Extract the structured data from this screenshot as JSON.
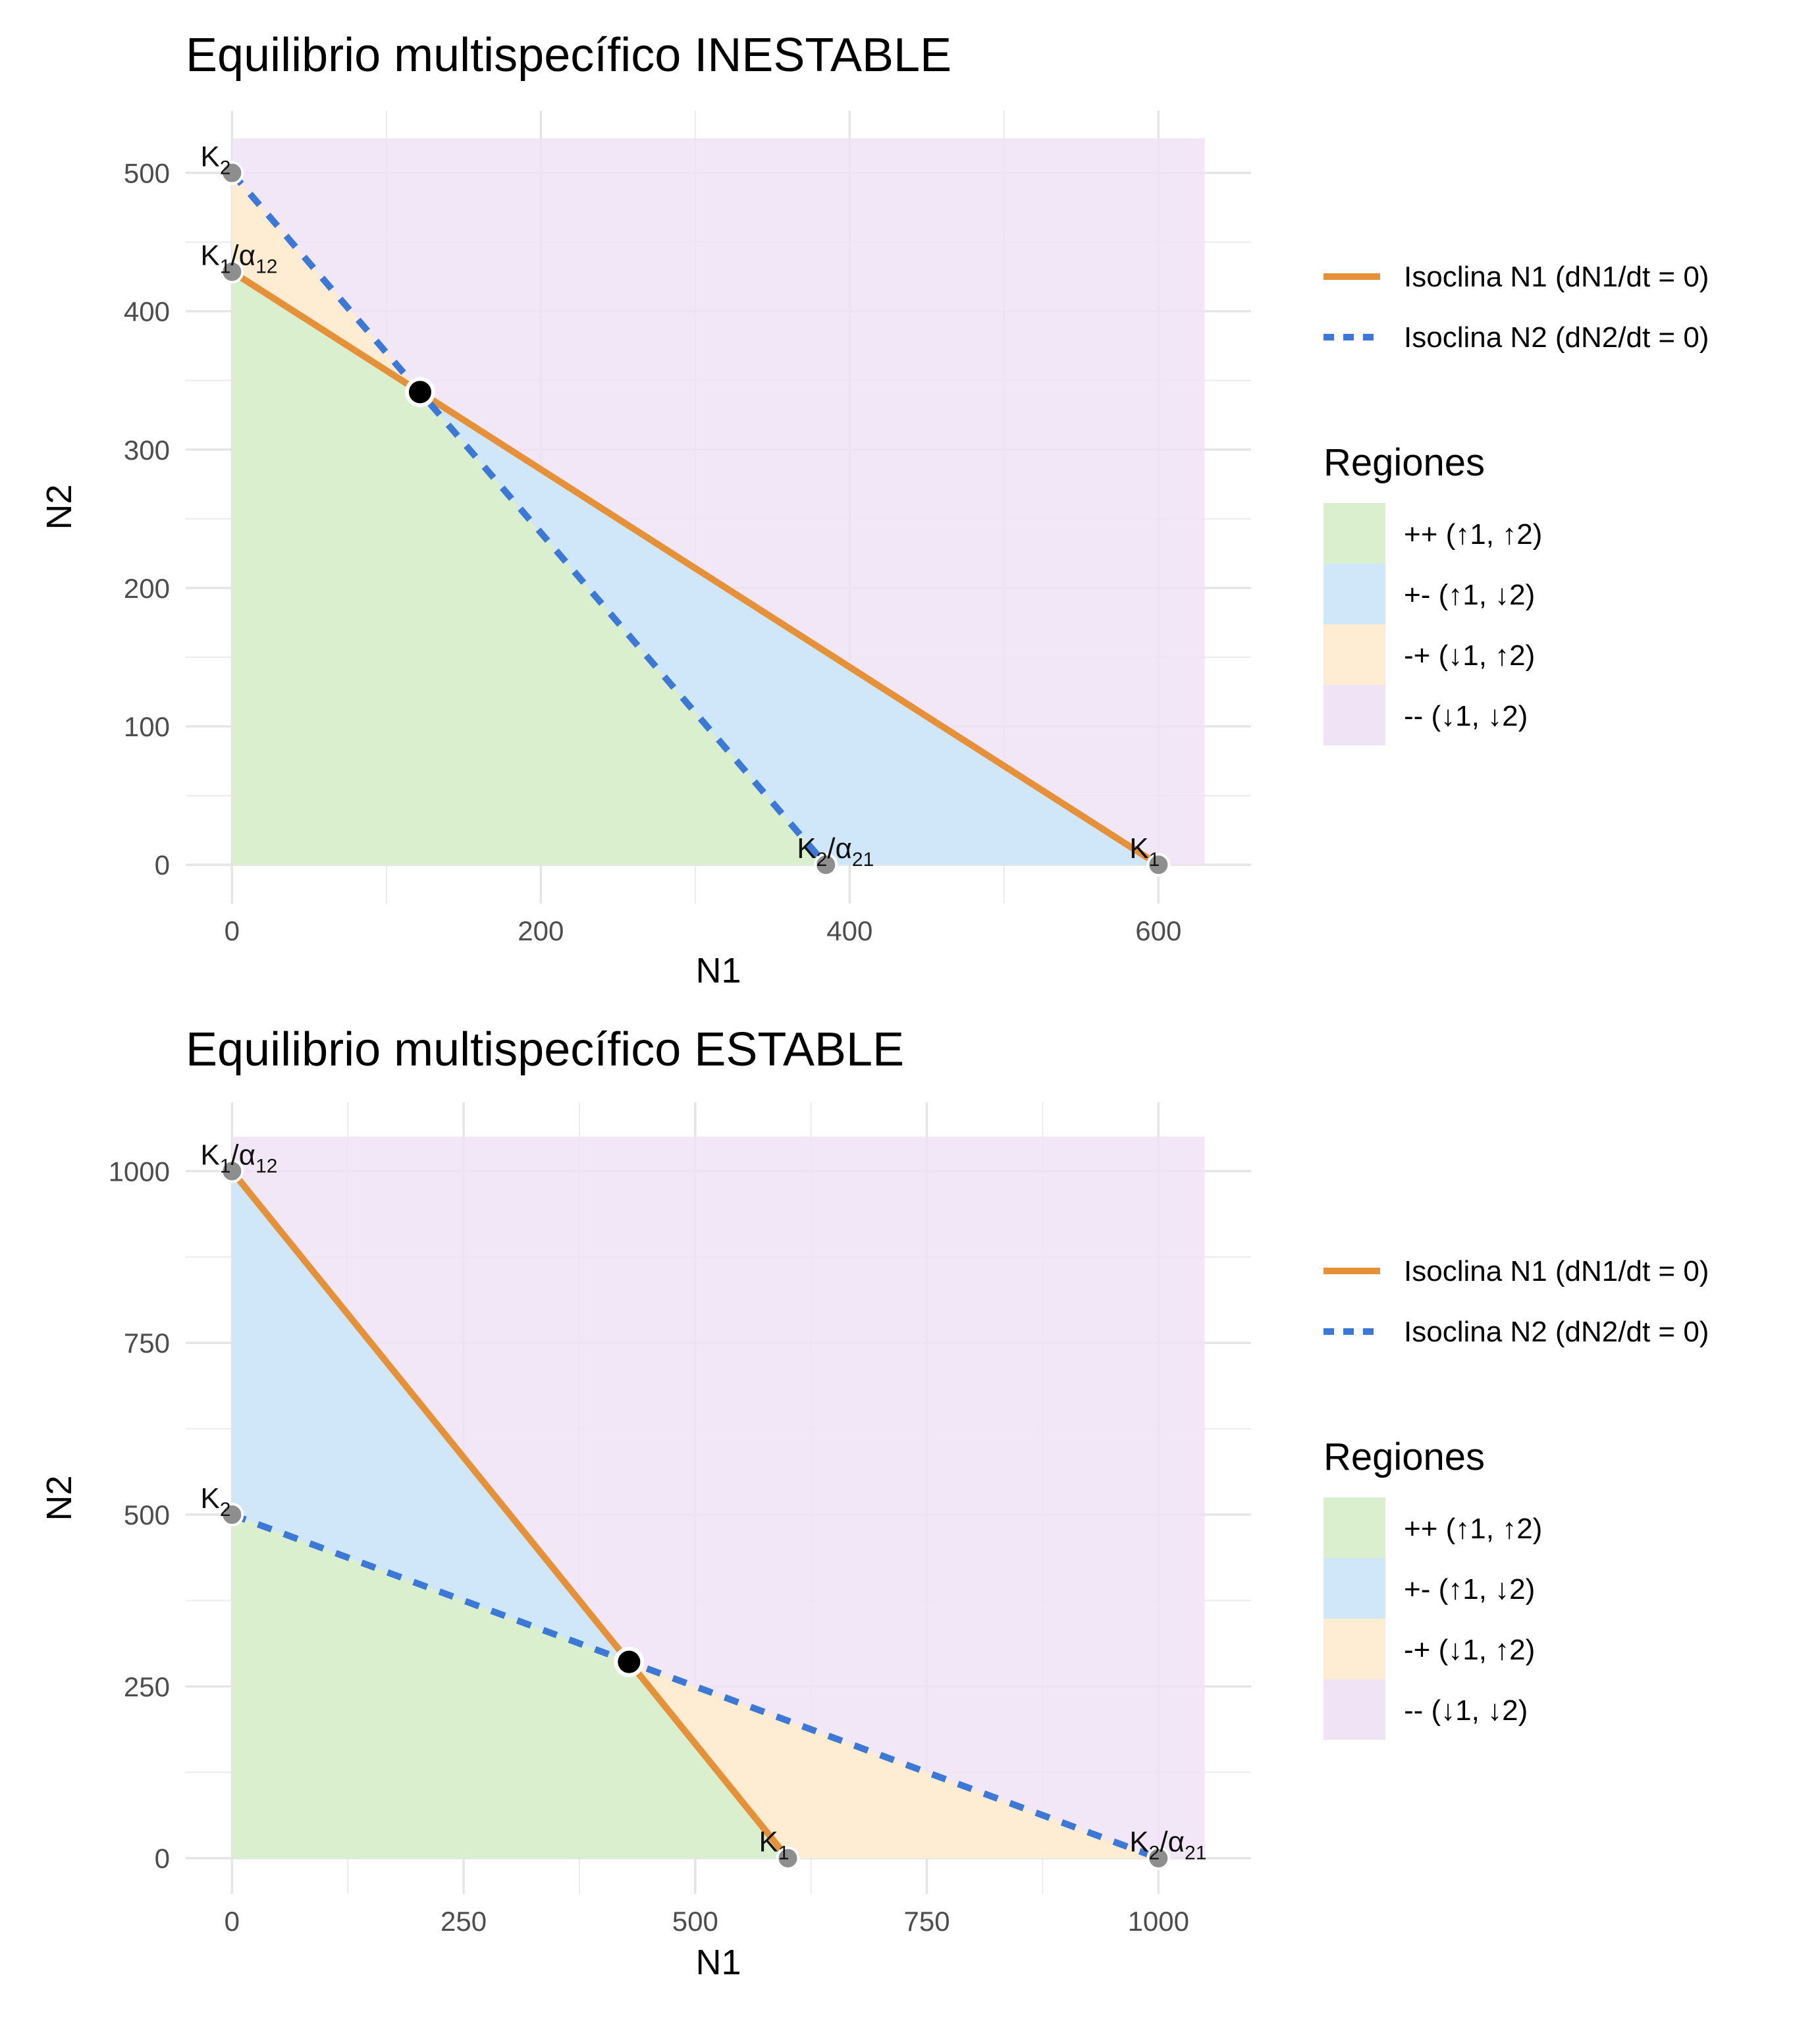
{
  "chart_data": [
    {
      "type": "line",
      "title": "Equilibrio multispecífico INESTABLE",
      "xlabel": "N1",
      "ylabel": "N2",
      "xlim": [
        -30,
        660
      ],
      "ylim": [
        -28,
        545
      ],
      "x_ticks": [
        0,
        200,
        400,
        600
      ],
      "y_ticks": [
        0,
        100,
        200,
        300,
        400,
        500
      ],
      "x_tick_labels": [
        "0",
        "200",
        "400",
        "600"
      ],
      "y_tick_labels": [
        "0",
        "100",
        "200",
        "300",
        "400",
        "500"
      ],
      "region_extent": {
        "x": [
          0,
          630
        ],
        "y": [
          0,
          525
        ]
      },
      "series": [
        {
          "name": "Isoclina N1 (dN1/dt = 0)",
          "style": "solid",
          "color": "#E69138",
          "x": [
            0,
            600
          ],
          "y": [
            428.6,
            0
          ]
        },
        {
          "name": "Isoclina N2 (dN2/dt = 0)",
          "style": "dashed",
          "color": "#3C78D8",
          "x": [
            0,
            384.6
          ],
          "y": [
            500,
            0
          ]
        }
      ],
      "regions": [
        {
          "name": "++ (↑1, ↑2)",
          "color": "#D9EFCD",
          "polygon": [
            [
              0,
              0
            ],
            [
              384.6,
              0
            ],
            [
              121.8,
              341.6
            ],
            [
              0,
              428.6
            ]
          ]
        },
        {
          "name": "+- (↑1, ↓2)",
          "color": "#D0E7FA",
          "polygon": [
            [
              384.6,
              0
            ],
            [
              600,
              0
            ],
            [
              121.8,
              341.6
            ]
          ]
        },
        {
          "name": "-+ (↓1, ↑2)",
          "color": "#FEEDD2",
          "polygon": [
            [
              0,
              428.6
            ],
            [
              121.8,
              341.6
            ],
            [
              0,
              500
            ]
          ]
        }
      ],
      "background_region": {
        "name": "-- (↓1, ↓2)",
        "color": "#EFE3F5"
      },
      "equilibrium": {
        "x": 121.8,
        "y": 341.6
      },
      "points": [
        {
          "base": "K",
          "sub": "2",
          "tail": "",
          "tail_sub": "",
          "x": 0,
          "y": 500
        },
        {
          "base": "K",
          "sub": "1",
          "tail": "/α",
          "tail_sub": "12",
          "x": 0,
          "y": 428.6
        },
        {
          "base": "K",
          "sub": "2",
          "tail": "/α",
          "tail_sub": "21",
          "x": 384.6,
          "y": 0
        },
        {
          "base": "K",
          "sub": "1",
          "tail": "",
          "tail_sub": "",
          "x": 600,
          "y": 0
        }
      ],
      "legend_title": "Regiones",
      "legend_position": "right"
    },
    {
      "type": "line",
      "title": "Equilibrio multispecífico ESTABLE",
      "xlabel": "N1",
      "ylabel": "N2",
      "xlim": [
        -50,
        1100
      ],
      "ylim": [
        -52,
        1100
      ],
      "x_ticks": [
        0,
        250,
        500,
        750,
        1000
      ],
      "y_ticks": [
        0,
        250,
        500,
        750,
        1000
      ],
      "x_tick_labels": [
        "0",
        "250",
        "500",
        "750",
        "1000"
      ],
      "y_tick_labels": [
        "0",
        "250",
        "500",
        "750",
        "1000"
      ],
      "region_extent": {
        "x": [
          0,
          1050
        ],
        "y": [
          0,
          1050
        ]
      },
      "series": [
        {
          "name": "Isoclina N1 (dN1/dt = 0)",
          "style": "solid",
          "color": "#E69138",
          "x": [
            0,
            600
          ],
          "y": [
            1000,
            0
          ]
        },
        {
          "name": "Isoclina N2 (dN2/dt = 0)",
          "style": "dashed",
          "color": "#3C78D8",
          "x": [
            0,
            1000
          ],
          "y": [
            500,
            0
          ]
        }
      ],
      "regions": [
        {
          "name": "++ (↑1, ↑2)",
          "color": "#D9EFCD",
          "polygon": [
            [
              0,
              0
            ],
            [
              600,
              0
            ],
            [
              428.6,
              285.7
            ],
            [
              0,
              500
            ]
          ]
        },
        {
          "name": "+- (↑1, ↓2)",
          "color": "#D0E7FA",
          "polygon": [
            [
              0,
              500
            ],
            [
              428.6,
              285.7
            ],
            [
              0,
              1000
            ]
          ]
        },
        {
          "name": "-+ (↓1, ↑2)",
          "color": "#FEEDD2",
          "polygon": [
            [
              600,
              0
            ],
            [
              1000,
              0
            ],
            [
              428.6,
              285.7
            ]
          ]
        }
      ],
      "background_region": {
        "name": "-- (↓1, ↓2)",
        "color": "#EFE3F5"
      },
      "equilibrium": {
        "x": 428.6,
        "y": 285.7
      },
      "points": [
        {
          "base": "K",
          "sub": "1",
          "tail": "/α",
          "tail_sub": "12",
          "x": 0,
          "y": 1000
        },
        {
          "base": "K",
          "sub": "2",
          "tail": "",
          "tail_sub": "",
          "x": 0,
          "y": 500
        },
        {
          "base": "K",
          "sub": "1",
          "tail": "",
          "tail_sub": "",
          "x": 600,
          "y": 0
        },
        {
          "base": "K",
          "sub": "2",
          "tail": "/α",
          "tail_sub": "21",
          "x": 1000,
          "y": 0
        }
      ],
      "legend_title": "Regiones",
      "legend_position": "right"
    }
  ]
}
